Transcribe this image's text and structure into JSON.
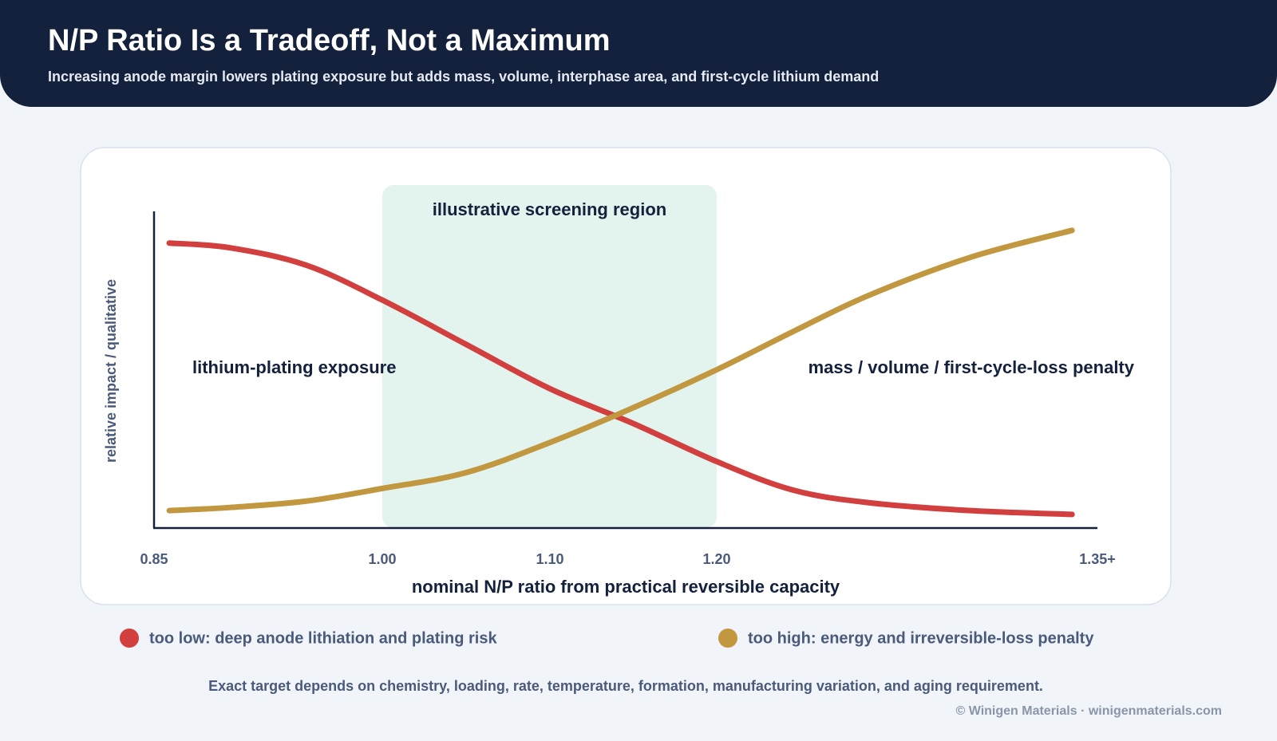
{
  "chart_data": {
    "type": "line",
    "title": "N/P Ratio Is a Tradeoff, Not a Maximum",
    "subtitle": "Increasing anode margin lowers plating exposure but adds mass, volume, interphase area, and first-cycle lithium demand",
    "x_label": "nominal N/P ratio from practical reversible capacity",
    "y_label": "relative impact / qualitative",
    "x": [
      0.86,
      0.9,
      0.95,
      1.0,
      1.05,
      1.1,
      1.15,
      1.2,
      1.23,
      1.26,
      1.3,
      1.34
    ],
    "series": [
      {
        "name": "too low: deep anode lithiation and plating risk",
        "color": "#d13f3f",
        "values": [
          0.9,
          0.885,
          0.83,
          0.72,
          0.58,
          0.44,
          0.33,
          0.21,
          0.12,
          0.08,
          0.055,
          0.043
        ]
      },
      {
        "name": "too high: energy and irreversible-loss penalty",
        "color": "#c1973f",
        "values": [
          0.055,
          0.065,
          0.085,
          0.125,
          0.175,
          0.27,
          0.38,
          0.5,
          0.62,
          0.735,
          0.855,
          0.94
        ]
      }
    ],
    "xlim": [
      0.85,
      1.35
    ],
    "xticks": [
      0.85,
      {
        "value": 1.0,
        "label": "1.00"
      },
      {
        "value": 1.1,
        "label": "1.10"
      },
      {
        "value": 1.2,
        "label": "1.20"
      },
      {
        "value": 1.35,
        "label": "1.35+"
      }
    ],
    "ylim": [
      0,
      1
    ],
    "region": {
      "label": "illustrative screening region",
      "x": [
        1.0,
        1.2
      ],
      "color": "#e3f3ee"
    },
    "annotations": [
      "lithium-plating exposure",
      "mass / volume / first-cycle-loss penalty"
    ],
    "footnote": "Exact target depends on chemistry, loading, rate, temperature, formation, manufacturing variation, and aging requirement.",
    "credit": "© Winigen Materials · winigenmaterials.com"
  }
}
